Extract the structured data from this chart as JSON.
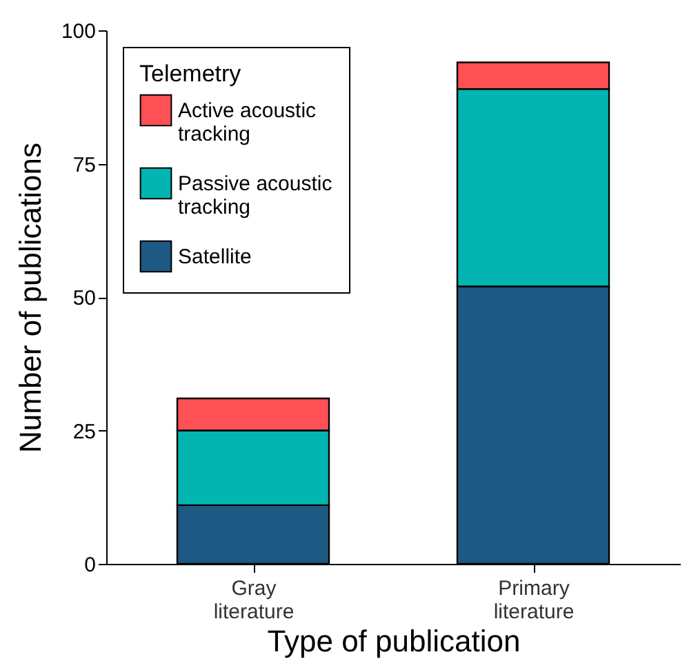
{
  "chart_data": {
    "type": "bar",
    "stacked": true,
    "xlabel": "Type of publication",
    "ylabel": "Number of publications",
    "legend_title": "Telemetry",
    "legend": "top left",
    "grid": false,
    "categories": [
      "Gray literature",
      "Primary literature"
    ],
    "series": [
      {
        "name": "Satellite",
        "color": "#1d5983",
        "values": [
          11,
          52
        ]
      },
      {
        "name": "Passive acoustic tracking",
        "color": "#02b5b1",
        "values": [
          14,
          37
        ]
      },
      {
        "name": "Active acoustic tracking",
        "color": "#fe5055",
        "values": [
          6,
          5
        ]
      }
    ],
    "ylim": [
      0,
      100
    ],
    "yticks": [
      0,
      25,
      50,
      75,
      100
    ]
  }
}
